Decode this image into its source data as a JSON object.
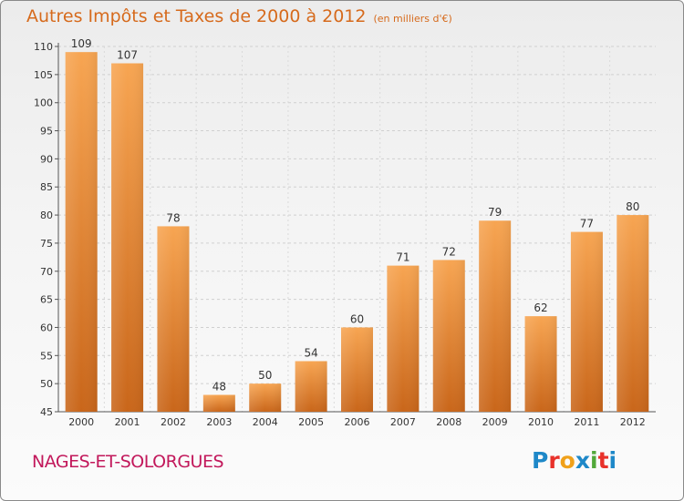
{
  "header": {
    "title": "Autres Impôts et Taxes de 2000 à 2012",
    "subtitle": "(en milliers d'€)"
  },
  "footer": {
    "commune": "NAGES-ET-SOLORGUES",
    "logo_text": "Proxiti"
  },
  "colors": {
    "bar_top": "#f7a552",
    "bar_bottom": "#c9661a",
    "title": "#d66a1c",
    "commune": "#c2185b"
  },
  "chart_data": {
    "type": "bar",
    "title": "Autres Impôts et Taxes de 2000 à 2012",
    "subtitle": "(en milliers d'€)",
    "categories": [
      "2000",
      "2001",
      "2002",
      "2003",
      "2004",
      "2005",
      "2006",
      "2007",
      "2008",
      "2009",
      "2010",
      "2011",
      "2012"
    ],
    "values": [
      109,
      107,
      78,
      48,
      50,
      54,
      60,
      71,
      72,
      79,
      62,
      77,
      80
    ],
    "ylim": [
      45,
      110
    ],
    "yticks": [
      45,
      50,
      55,
      60,
      65,
      70,
      75,
      80,
      85,
      90,
      95,
      100,
      105,
      110
    ],
    "grid": true,
    "legend": "none"
  }
}
